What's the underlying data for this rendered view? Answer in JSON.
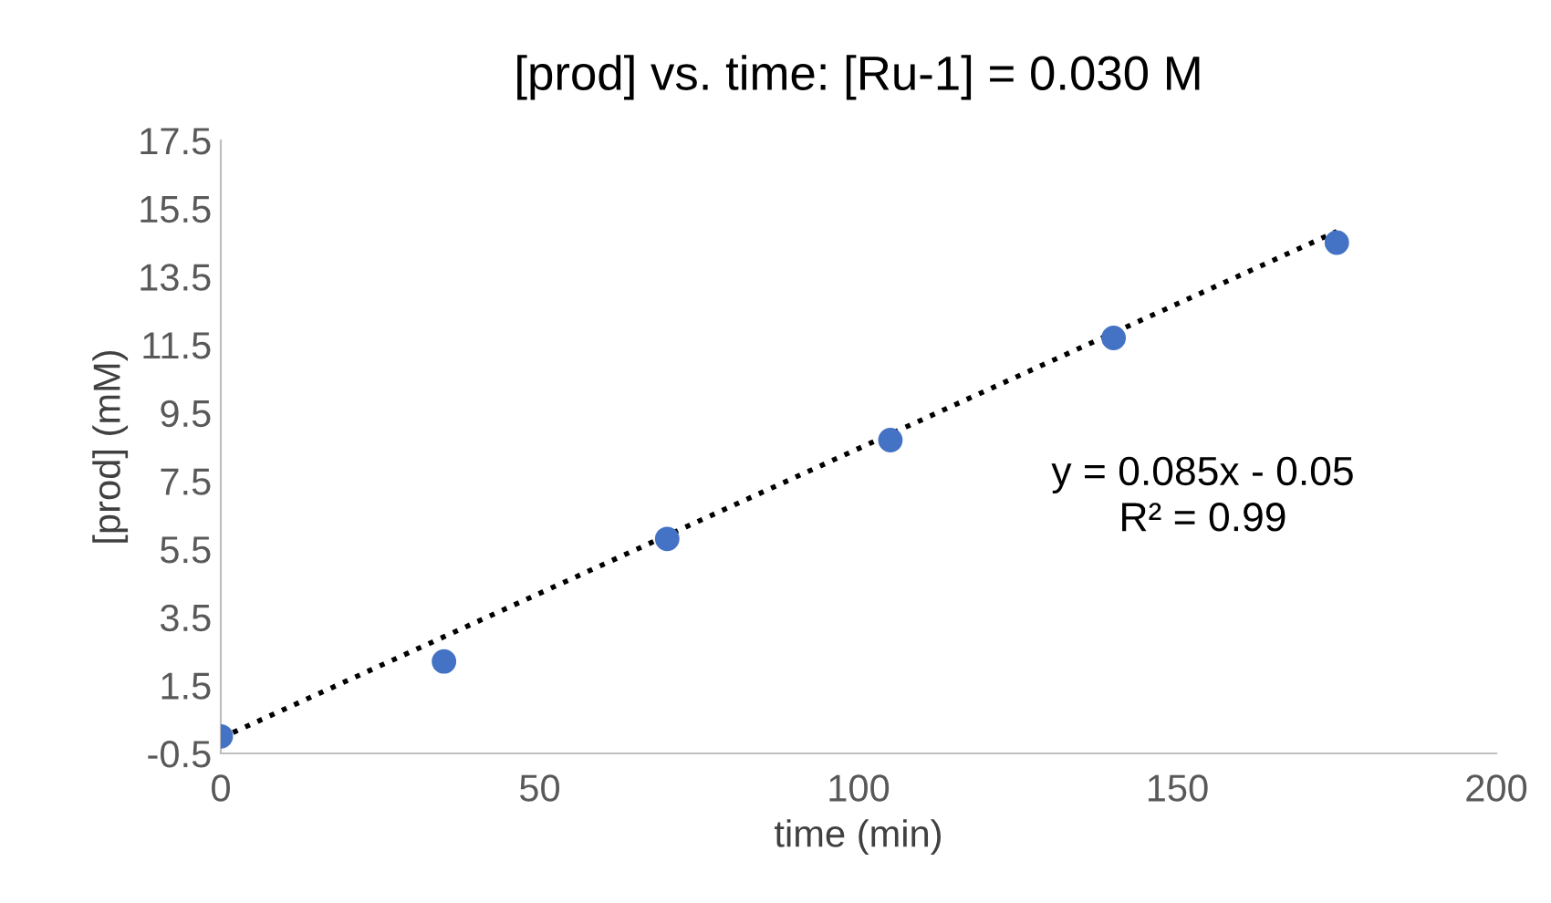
{
  "chart_data": {
    "type": "scatter",
    "title": "[prod] vs. time: [Ru-1] = 0.030 M",
    "xlabel": "time (min)",
    "ylabel": "[prod] (mM)",
    "x": [
      0,
      35,
      70,
      105,
      140,
      175
    ],
    "series": [
      {
        "color": "#4472c4",
        "marker": "circle",
        "values": [
          0.0,
          2.2,
          5.8,
          8.7,
          11.7,
          14.5
        ]
      },
      {
        "type": "line",
        "color": "#000000",
        "line_style": "dotted",
        "marker": "none",
        "x": [
          0,
          175
        ],
        "values": [
          -0.05,
          14.83
        ]
      }
    ],
    "annotations": [
      "y = 0.085x - 0.05",
      "R² = 0.99"
    ],
    "xlim": [
      0,
      200
    ],
    "xticks": [
      0,
      50,
      100,
      150,
      200
    ],
    "ylim": [
      -0.5,
      17.5
    ],
    "yticks": [
      -0.5,
      1.5,
      3.5,
      5.5,
      7.5,
      9.5,
      11.5,
      13.5,
      15.5,
      17.5
    ],
    "grid": false,
    "legend": false
  }
}
